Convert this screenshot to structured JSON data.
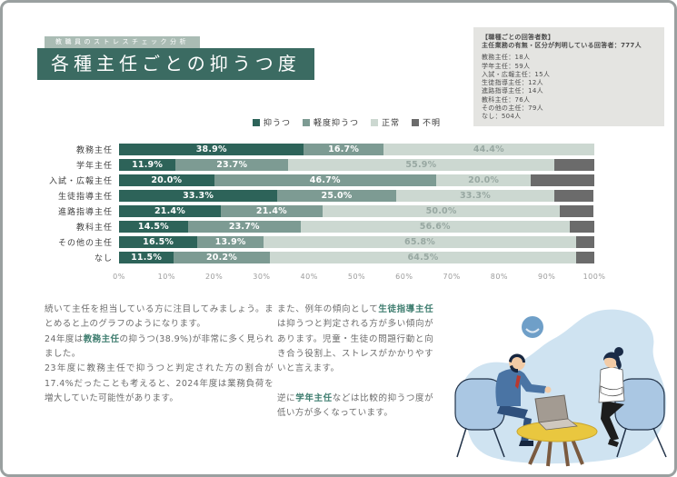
{
  "page": {
    "eyebrow": "教職員のストレスチェック分析",
    "title": "各種主任ごとの抑うつ度"
  },
  "palette": {
    "banner_teal": "#3b6b62",
    "eyebrow_bg": "#aabcb4",
    "highlight_teal": "#3e7d6f",
    "info_box_bg": "#e4e4e1",
    "illustration_blue": "#cfe3f1"
  },
  "info_box": {
    "heading": "【職種ごとの回答者数】",
    "subheading": "主任業務の有無・区分が判明している回答者：777人",
    "items": [
      {
        "label": "教務主任",
        "value": "18人"
      },
      {
        "label": "学年主任",
        "value": "59人"
      },
      {
        "label": "入試・広報主任",
        "value": "15人"
      },
      {
        "label": "生徒指導主任",
        "value": "12人"
      },
      {
        "label": "進路指導主任",
        "value": "14人"
      },
      {
        "label": "教科主任",
        "value": "76人"
      },
      {
        "label": "その他の主任",
        "value": "79人"
      },
      {
        "label": "なし",
        "value": "504人"
      }
    ]
  },
  "chart_data": {
    "type": "bar",
    "stacked": true,
    "orientation": "horizontal",
    "title": "各種主任ごとの抑うつ度",
    "categories": [
      "教務主任",
      "学年主任",
      "入試・広報主任",
      "生徒指導主任",
      "進路指導主任",
      "教科主任",
      "その他の主任",
      "なし"
    ],
    "series": [
      {
        "name": "抑うつ",
        "color": "#2d6359",
        "label_color": "#ffffff",
        "data_labels": true,
        "values": [
          38.9,
          11.9,
          20.0,
          33.3,
          21.4,
          14.5,
          16.5,
          11.5
        ]
      },
      {
        "name": "軽度抑うつ",
        "color": "#7d9b93",
        "label_color": "#ffffff",
        "data_labels": true,
        "values": [
          16.7,
          23.7,
          46.7,
          25.0,
          21.4,
          23.7,
          13.9,
          20.2
        ]
      },
      {
        "name": "正常",
        "color": "#ccd8d1",
        "label_color": "#98a8a2",
        "data_labels": true,
        "values": [
          44.4,
          55.9,
          20.0,
          33.3,
          50.0,
          56.6,
          65.8,
          64.5
        ]
      },
      {
        "name": "不明",
        "color": "#6b6b6b",
        "label_color": "#ffffff",
        "data_labels": false,
        "values": [
          0,
          8.5,
          13.3,
          8.3,
          7.1,
          5.3,
          3.8,
          3.8
        ]
      }
    ],
    "xlim": [
      0,
      100
    ],
    "x_ticks": [
      "0%",
      "10%",
      "20%",
      "30%",
      "40%",
      "50%",
      "60%",
      "70%",
      "80%",
      "90%",
      "100%"
    ],
    "legend_position": "top",
    "grid": false
  },
  "paragraphs": {
    "left": [
      {
        "text": "続いて主任を担当している方に注目してみましょう。まとめると上のグラフのようになります。\n24年度は"
      },
      {
        "text": "教務主任",
        "highlight": true
      },
      {
        "text": "の抑うつ(38.9%)が非常に多く見られました。\n23年度に教務主任で抑うつと判定された方の割合が17.4%だったことも考えると、2024年度は業務負荷を増大していた可能性があります。"
      }
    ],
    "right": [
      {
        "text": "また、例年の傾向として"
      },
      {
        "text": "生徒指導主任",
        "highlight": true
      },
      {
        "text": "は抑うつと判定される方が多い傾向があります。児童・生徒の問題行動と向き合う役割上、ストレスがかかりやすいと言えます。\n\n逆に"
      },
      {
        "text": "学年主任",
        "highlight": true
      },
      {
        "text": "などは比較的抑うつ度が低い方が多くなっています。"
      }
    ]
  },
  "illustration": {
    "elements": [
      "blue-blob-background",
      "clock-icon",
      "armchair",
      "man-in-blue-suit",
      "woman-in-white-shirt",
      "round-yellow-table",
      "laptop"
    ]
  }
}
